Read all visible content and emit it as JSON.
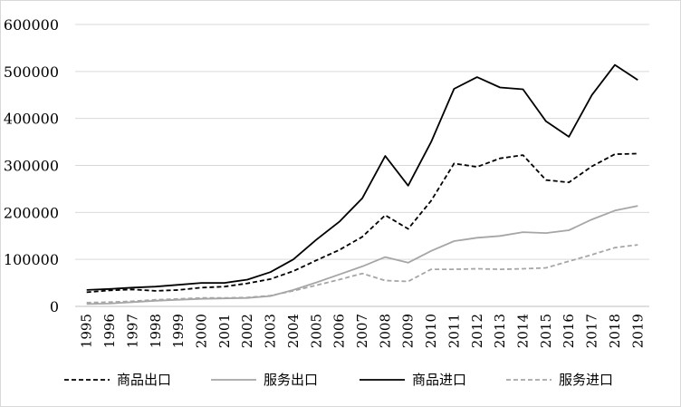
{
  "chart_data": {
    "type": "line",
    "title": "",
    "xlabel": "",
    "ylabel": "",
    "ylim": [
      0,
      600000
    ],
    "yticks": [
      0,
      100000,
      200000,
      300000,
      400000,
      500000,
      600000
    ],
    "grid": "horizontal",
    "legend": "bottom",
    "categories": [
      "1995",
      "1996",
      "1997",
      "1998",
      "1999",
      "2000",
      "2001",
      "2002",
      "2003",
      "2004",
      "2005",
      "2006",
      "2007",
      "2008",
      "2009",
      "2010",
      "2011",
      "2012",
      "2013",
      "2014",
      "2015",
      "2016",
      "2017",
      "2018",
      "2019"
    ],
    "series": [
      {
        "name": "商品出口",
        "color": "#000000",
        "dash": "dashed",
        "values": [
          30000,
          34000,
          36000,
          33000,
          35000,
          40000,
          42000,
          49000,
          58000,
          75000,
          98000,
          120000,
          148000,
          194000,
          165000,
          225000,
          304000,
          297000,
          315000,
          322000,
          269000,
          264000,
          298000,
          324000,
          325000
        ]
      },
      {
        "name": "服务出口",
        "color": "#a6a6a6",
        "dash": "solid",
        "values": [
          5000,
          6000,
          9000,
          12000,
          14000,
          16000,
          17000,
          18000,
          22000,
          35000,
          51000,
          68000,
          85000,
          105000,
          93000,
          118000,
          139000,
          146000,
          150000,
          158000,
          156000,
          162000,
          185000,
          204000,
          214000
        ]
      },
      {
        "name": "商品进口",
        "color": "#000000",
        "dash": "solid",
        "values": [
          35000,
          37000,
          40000,
          42000,
          46000,
          50000,
          50000,
          57000,
          73000,
          100000,
          142000,
          180000,
          230000,
          320000,
          257000,
          350000,
          463000,
          488000,
          466000,
          462000,
          394000,
          361000,
          450000,
          514000,
          482000
        ]
      },
      {
        "name": "服务进口",
        "color": "#a6a6a6",
        "dash": "dashed",
        "values": [
          8000,
          9000,
          11000,
          14000,
          16000,
          18000,
          18000,
          19000,
          23000,
          33000,
          45000,
          57000,
          70000,
          55000,
          53000,
          79000,
          79000,
          80000,
          79000,
          80000,
          82000,
          96000,
          110000,
          125000,
          131000
        ]
      }
    ]
  }
}
